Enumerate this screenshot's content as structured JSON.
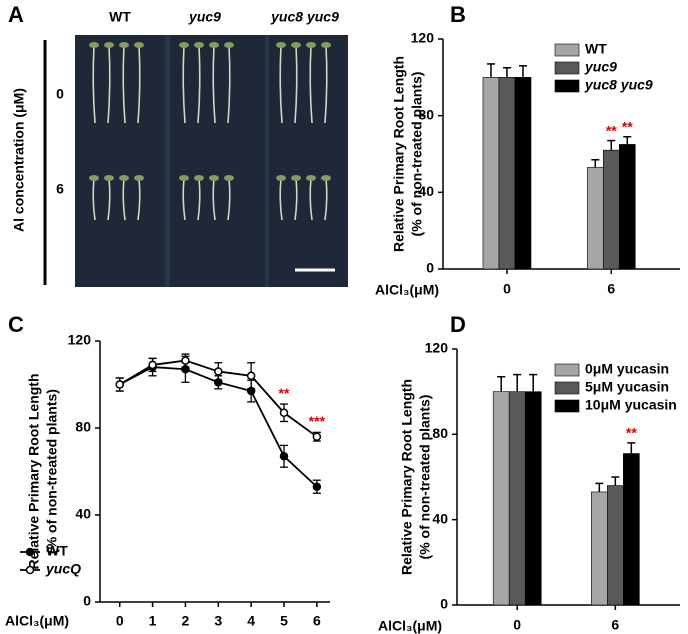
{
  "figure_a": {
    "panel": "A",
    "columns": [
      "WT",
      "yuc9",
      "yuc8 yuc9"
    ],
    "rows": [
      "0",
      "6"
    ],
    "ylabel": "Al concentration (μM)"
  },
  "chart_data": [
    {
      "panel": "B",
      "type": "bar",
      "ylabel": [
        "Relative Primary Root Length",
        "(% of non-treated plants)"
      ],
      "xlabel": "AlCl₃(μM)",
      "categories": [
        "0",
        "6"
      ],
      "ylim": [
        0,
        120
      ],
      "yticks": [
        0,
        40,
        80,
        120
      ],
      "legend": "upper right",
      "series": [
        {
          "name": "WT",
          "color": "#a6a6a6",
          "values": [
            100,
            53
          ],
          "errors": [
            7,
            4
          ],
          "significance": [
            null,
            null
          ]
        },
        {
          "name": "yuc9",
          "color": "#595959",
          "italic": true,
          "values": [
            100,
            62
          ],
          "errors": [
            5,
            5
          ],
          "significance": [
            null,
            "**"
          ]
        },
        {
          "name": "yuc8 yuc9",
          "color": "#000000",
          "italic": true,
          "values": [
            100,
            65
          ],
          "errors": [
            6,
            4
          ],
          "significance": [
            null,
            "**"
          ]
        }
      ]
    },
    {
      "panel": "C",
      "type": "line",
      "ylabel": [
        "Relative Primary Root Length",
        "(% of non-treated plants)"
      ],
      "xlabel": "AlCl₃(μM)",
      "x": [
        0,
        1,
        2,
        3,
        4,
        5,
        6
      ],
      "xlim": [
        -0.6,
        6.4
      ],
      "xticks": [
        0,
        1,
        2,
        3,
        4,
        5,
        6
      ],
      "ylim": [
        0,
        120
      ],
      "yticks": [
        0,
        40,
        80,
        120
      ],
      "legend": "lower left",
      "series": [
        {
          "name": "WT",
          "color": "#000000",
          "marker": "filled",
          "values": [
            100,
            108,
            107,
            101,
            97,
            67,
            53
          ],
          "errors": [
            3,
            4,
            6,
            3,
            5,
            5,
            3
          ],
          "significance": [
            null,
            null,
            null,
            null,
            null,
            null,
            null
          ]
        },
        {
          "name": "yucQ",
          "color": "#000000",
          "marker": "open",
          "italic": true,
          "values": [
            100,
            109,
            111,
            106,
            104,
            87,
            76
          ],
          "errors": [
            3,
            3,
            3,
            4,
            6,
            4,
            2
          ],
          "significance": [
            null,
            null,
            null,
            null,
            null,
            "**",
            "***"
          ]
        }
      ]
    },
    {
      "panel": "D",
      "type": "bar",
      "ylabel": [
        "Relative Primary Root Length",
        "(% of non-treated plants)"
      ],
      "xlabel": "AlCl₃(μM)",
      "categories": [
        "0",
        "6"
      ],
      "ylim": [
        0,
        120
      ],
      "yticks": [
        0,
        40,
        80,
        120
      ],
      "legend": "upper right",
      "series": [
        {
          "name": "0μM yucasin",
          "color": "#a6a6a6",
          "values": [
            100,
            53
          ],
          "errors": [
            7,
            4
          ],
          "significance": [
            null,
            null
          ]
        },
        {
          "name": "5μM yucasin",
          "color": "#595959",
          "values": [
            100,
            56
          ],
          "errors": [
            8,
            4
          ],
          "significance": [
            null,
            null
          ]
        },
        {
          "name": "10μM yucasin",
          "color": "#000000",
          "values": [
            100,
            71
          ],
          "errors": [
            8,
            5
          ],
          "significance": [
            null,
            "**"
          ]
        }
      ]
    }
  ]
}
